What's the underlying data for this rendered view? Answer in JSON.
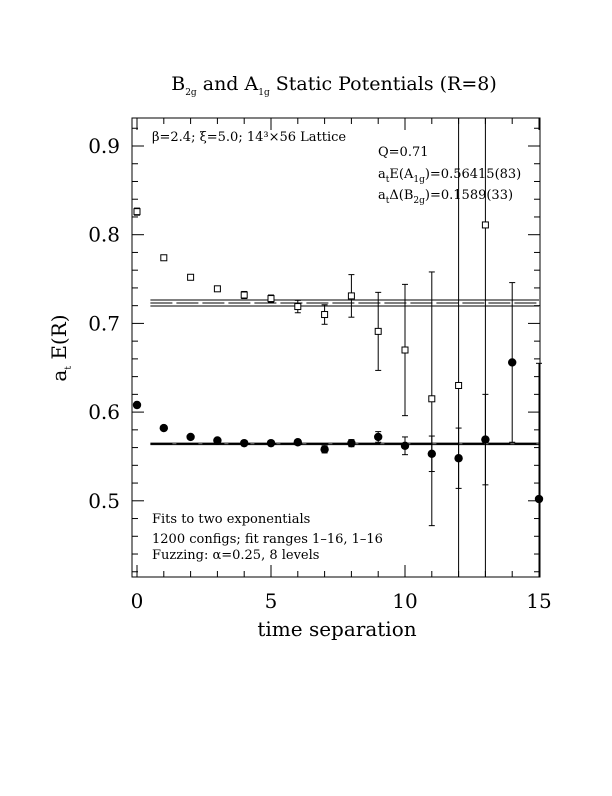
{
  "chart_data": {
    "type": "scatter",
    "title": {
      "prefix": "B",
      "sub1": "2g",
      "mid": " and A",
      "sub2": "1g",
      "suffix": " Static Potentials (R=8)"
    },
    "xlabel": "time separation",
    "ylabel": {
      "a": "a",
      "sub": "t",
      "rest": " E(R)"
    },
    "xlim": [
      0,
      15
    ],
    "ylim": [
      0.41,
      0.93
    ],
    "x_ticks": [
      0,
      5,
      10,
      15
    ],
    "y_ticks": [
      0.5,
      0.6,
      0.7,
      0.8,
      0.9
    ],
    "x_tick_labels": [
      "0",
      "5",
      "10",
      "15"
    ],
    "y_tick_labels": [
      "0.5",
      "0.6",
      "0.7",
      "0.8",
      "0.9"
    ],
    "grid": false,
    "series": [
      {
        "marker": "filled-circle",
        "points": [
          {
            "x": 0,
            "y": 0.608,
            "err": 0.003
          },
          {
            "x": 1,
            "y": 0.582,
            "err": 0.002
          },
          {
            "x": 2,
            "y": 0.572,
            "err": 0.002
          },
          {
            "x": 3,
            "y": 0.568,
            "err": 0.002
          },
          {
            "x": 4,
            "y": 0.565,
            "err": 0.002
          },
          {
            "x": 5,
            "y": 0.565,
            "err": 0.002
          },
          {
            "x": 6,
            "y": 0.566,
            "err": 0.003
          },
          {
            "x": 7,
            "y": 0.558,
            "err": 0.004
          },
          {
            "x": 8,
            "y": 0.565,
            "err": 0.004
          },
          {
            "x": 9,
            "y": 0.572,
            "err": 0.006
          },
          {
            "x": 10,
            "y": 0.562,
            "err": 0.01
          },
          {
            "x": 11,
            "y": 0.553,
            "err": 0.02
          },
          {
            "x": 12,
            "y": 0.548,
            "err": 0.034
          },
          {
            "x": 13,
            "y": 0.569,
            "err": 0.051
          },
          {
            "x": 14,
            "y": 0.656,
            "err": 0.09
          },
          {
            "x": 15,
            "y": 0.502,
            "err": 0.153
          }
        ],
        "fit": {
          "x_start": 0.5,
          "x_end": 15,
          "y": 0.56415,
          "band": 0.00083
        }
      },
      {
        "marker": "open-square",
        "points": [
          {
            "x": 0,
            "y": 0.826,
            "err": 0.004
          },
          {
            "x": 1,
            "y": 0.774,
            "err": 0.003
          },
          {
            "x": 2,
            "y": 0.752,
            "err": 0.003
          },
          {
            "x": 3,
            "y": 0.739,
            "err": 0.003
          },
          {
            "x": 4,
            "y": 0.732,
            "err": 0.004
          },
          {
            "x": 5,
            "y": 0.728,
            "err": 0.004
          },
          {
            "x": 6,
            "y": 0.719,
            "err": 0.007
          },
          {
            "x": 7,
            "y": 0.71,
            "err": 0.011
          },
          {
            "x": 8,
            "y": 0.731,
            "err": 0.024
          },
          {
            "x": 9,
            "y": 0.691,
            "err": 0.044
          },
          {
            "x": 10,
            "y": 0.67,
            "err": 0.074
          },
          {
            "x": 11,
            "y": 0.615,
            "err": 0.143
          },
          {
            "x": 12,
            "y": 0.63,
            "err": 0.33
          },
          {
            "x": 13,
            "y": 0.811,
            "err": 0.5
          }
        ],
        "fit": {
          "x_start": 0.5,
          "x_end": 15,
          "y": 0.72305,
          "band": 0.0034
        }
      }
    ],
    "annotations": {
      "lattice": "β=2.4; ξ=5.0; 14³×56 Lattice",
      "q": "Q=0.71",
      "ea1g": {
        "pre": "a",
        "s1": "t",
        "mid": "E(A",
        "s2": "1g",
        "post": ")=0.56415(83)"
      },
      "db2g": {
        "pre": "a",
        "s1": "t",
        "mid": "Δ(B",
        "s2": "2g",
        "post": ")=0.1589(33)"
      },
      "fits": "Fits to two exponentials",
      "configs": "1200 configs; fit ranges 1–16, 1–16",
      "fuzzing": "Fuzzing: α=0.25, 8 levels"
    }
  }
}
